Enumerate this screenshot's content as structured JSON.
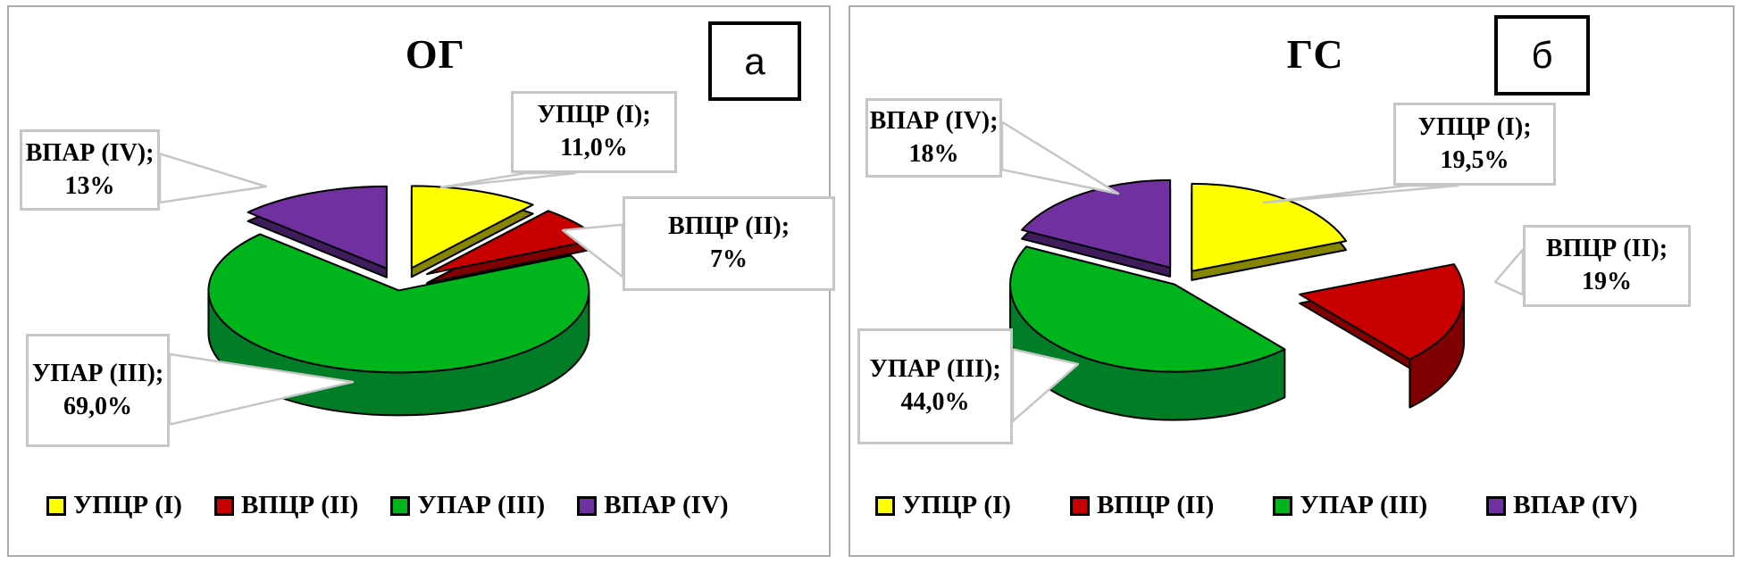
{
  "figure": {
    "panels": [
      {
        "corner_label": "а"
      },
      {
        "corner_label": "б"
      }
    ],
    "style": {
      "panel_border_color": "#ababab",
      "callout_border_color": "#c6c6c6",
      "slice_outline_color": "#000000",
      "background": "#ffffff"
    }
  },
  "chart_data": [
    {
      "type": "pie",
      "style": "3d-exploded",
      "title": "ОГ",
      "start_angle_deg": 0,
      "direction": "clockwise",
      "legend_position": "bottom",
      "labels": [
        "УПЦР (I)",
        "ВПЦР (II)",
        "УПАР (III)",
        "ВПАР (IV)"
      ],
      "values": [
        11.0,
        7,
        69.0,
        13
      ],
      "value_labels": [
        "11,0%",
        "7%",
        "69,0%",
        "13%"
      ],
      "callout_lines": [
        [
          "УПЦР (I);",
          "11,0%"
        ],
        [
          "ВПЦР (II);",
          "7%"
        ],
        [
          "УПАР (III);",
          "69,0%"
        ],
        [
          "ВПАР (IV);",
          "13%"
        ]
      ],
      "slice_colors": [
        {
          "top": "#ffff00",
          "side": "#858500"
        },
        {
          "top": "#c90000",
          "side": "#7e0000"
        },
        {
          "top": "#00b41c",
          "side": "#007d26"
        },
        {
          "top": "#7030a0",
          "side": "#3f1c5c"
        }
      ]
    },
    {
      "type": "pie",
      "style": "3d-exploded",
      "title": "ГС",
      "start_angle_deg": 0,
      "direction": "clockwise",
      "legend_position": "bottom",
      "labels": [
        "УПЦР (I)",
        "ВПЦР (II)",
        "УПАР (III)",
        "ВПАР (IV)"
      ],
      "values": [
        19.5,
        19,
        44.0,
        18
      ],
      "value_labels": [
        "19,5%",
        "19%",
        "44,0%",
        "18%"
      ],
      "callout_lines": [
        [
          "УПЦР (I);",
          "19,5%"
        ],
        [
          "ВПЦР (II);",
          "19%"
        ],
        [
          "УПАР (III);",
          "44,0%"
        ],
        [
          "ВПАР (IV);",
          "18%"
        ]
      ],
      "slice_colors": [
        {
          "top": "#ffff00",
          "side": "#858500"
        },
        {
          "top": "#c90000",
          "side": "#7e0000"
        },
        {
          "top": "#00b41c",
          "side": "#007d26"
        },
        {
          "top": "#7030a0",
          "side": "#3f1c5c"
        }
      ]
    }
  ]
}
